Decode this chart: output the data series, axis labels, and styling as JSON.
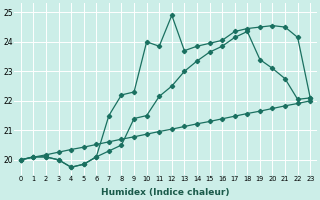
{
  "xlabel": "Humidex (Indice chaleur)",
  "bg_color": "#cceee8",
  "line_color": "#1a7060",
  "grid_color": "#ffffff",
  "xlim": [
    -0.5,
    23.5
  ],
  "ylim": [
    19.5,
    25.3
  ],
  "yticks": [
    20,
    21,
    22,
    23,
    24,
    25
  ],
  "xticks": [
    0,
    1,
    2,
    3,
    4,
    5,
    6,
    7,
    8,
    9,
    10,
    11,
    12,
    13,
    14,
    15,
    16,
    17,
    18,
    19,
    20,
    21,
    22,
    23
  ],
  "line_straight_x": [
    0,
    1,
    2,
    3,
    4,
    5,
    6,
    7,
    8,
    9,
    10,
    11,
    12,
    13,
    14,
    15,
    16,
    17,
    18,
    19,
    20,
    21,
    22,
    23
  ],
  "line_straight_y": [
    20.0,
    20.09,
    20.17,
    20.26,
    20.35,
    20.43,
    20.52,
    20.61,
    20.7,
    20.78,
    20.87,
    20.96,
    21.04,
    21.13,
    21.22,
    21.3,
    21.39,
    21.48,
    21.57,
    21.65,
    21.74,
    21.83,
    21.91,
    22.0
  ],
  "line_mid_x": [
    0,
    1,
    2,
    3,
    4,
    5,
    6,
    7,
    8,
    9,
    10,
    11,
    12,
    13,
    14,
    15,
    16,
    17,
    18,
    19,
    20,
    21,
    22,
    23
  ],
  "line_mid_y": [
    20.0,
    20.1,
    20.1,
    20.0,
    19.75,
    19.85,
    20.1,
    20.3,
    20.5,
    21.4,
    21.5,
    22.15,
    22.5,
    23.0,
    23.35,
    23.65,
    23.85,
    24.15,
    24.35,
    23.4,
    23.1,
    22.75,
    22.05,
    22.1
  ],
  "line_top_x": [
    0,
    1,
    2,
    3,
    4,
    5,
    6,
    7,
    8,
    9,
    10,
    11,
    12,
    13,
    14,
    15,
    16,
    17,
    18,
    19,
    20,
    21,
    22,
    23
  ],
  "line_top_y": [
    20.0,
    20.1,
    20.1,
    20.0,
    19.75,
    19.85,
    20.1,
    21.5,
    22.2,
    22.3,
    24.0,
    23.85,
    24.9,
    23.7,
    23.85,
    23.95,
    24.05,
    24.35,
    24.45,
    24.5,
    24.55,
    24.5,
    24.15,
    22.1
  ]
}
